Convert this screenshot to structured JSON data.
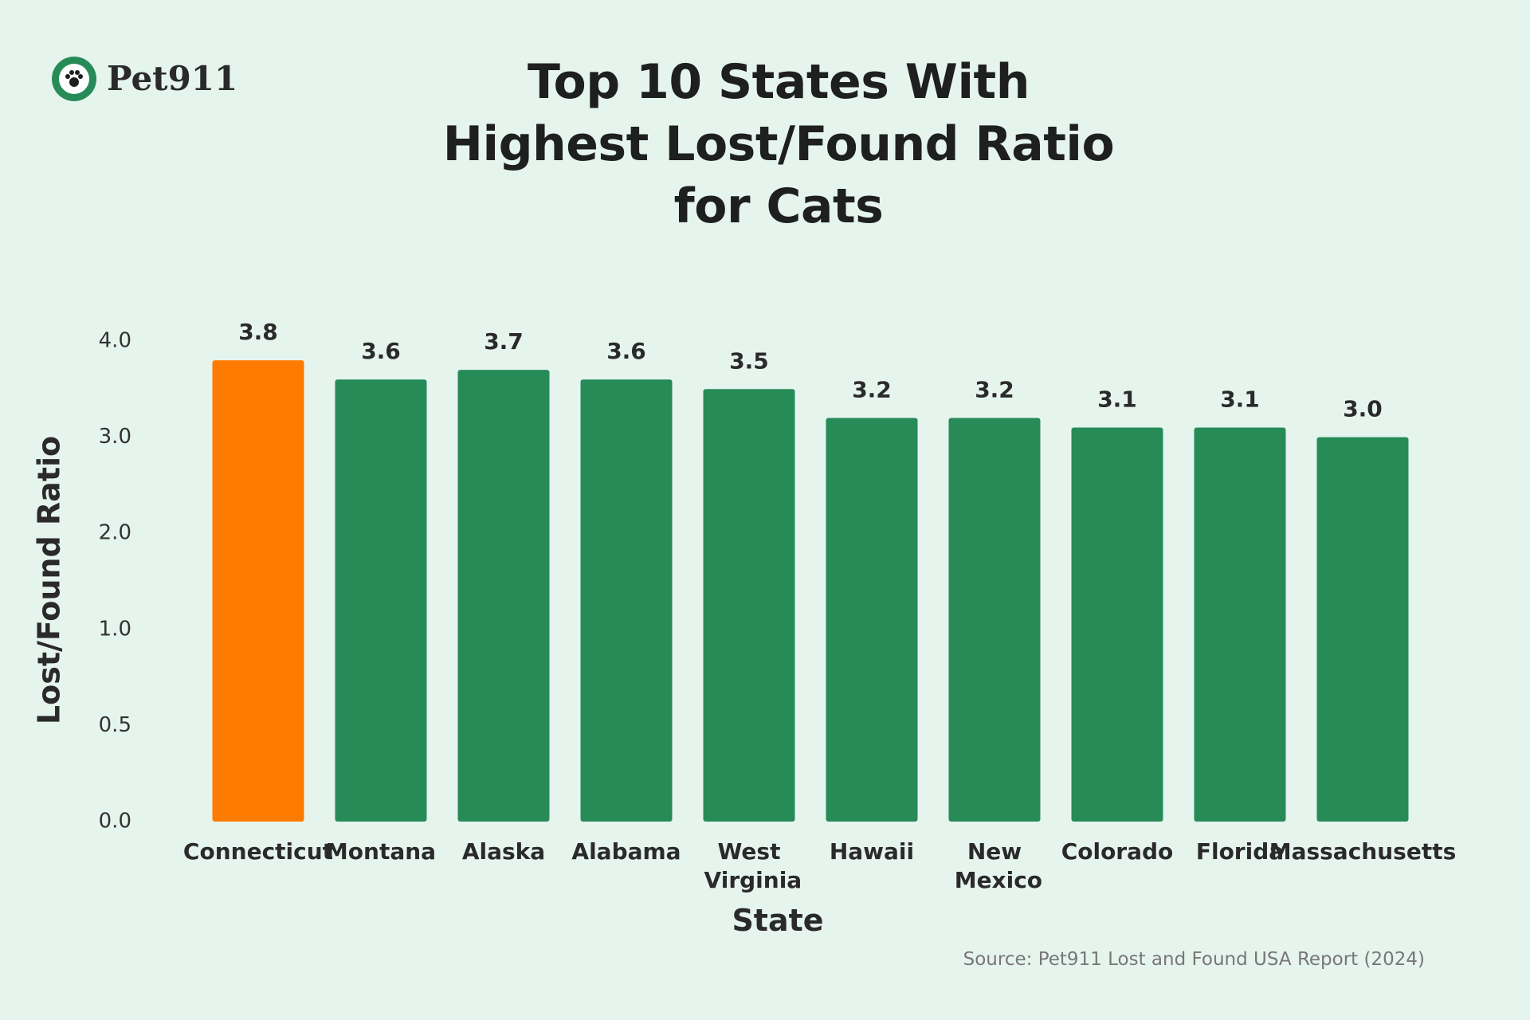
{
  "logo": "Pet911",
  "chart_data": {
    "type": "bar",
    "title": "Top 10 States With Highest Lost/Found Ratio for Cats",
    "x_label": "State",
    "y_label": "Lost/Found Ratio",
    "source": "Source: Pet911 Lost and Found USA Report (2024)",
    "categories": [
      "Connecticut",
      "Montana",
      "Alaska",
      "Alabama",
      "West Virginia",
      "Hawaii",
      "New Mexico",
      "Colorado",
      "Florida",
      "Massachusetts"
    ],
    "values": [
      3.8,
      3.6,
      3.7,
      3.6,
      3.5,
      3.2,
      3.2,
      3.1,
      3.1,
      3.0
    ],
    "value_labels": [
      "3.8",
      "3.6",
      "3.7",
      "3.6",
      "3.5",
      "3.2",
      "3.2",
      "3.1",
      "3.1",
      "3.0"
    ],
    "colors": [
      "#ff7b00",
      "#278b58",
      "#278b58",
      "#278b58",
      "#278b58",
      "#278b58",
      "#278b58",
      "#278b58",
      "#278b58",
      "#278b58"
    ],
    "ylim": [
      0,
      4
    ],
    "yticks": [
      {
        "value": 0,
        "label": "0.0"
      },
      0.5,
      {
        "value": 1,
        "label": "1.0"
      },
      {
        "value": 2,
        "label": "2.0"
      },
      {
        "value": 3,
        "label": "3.0"
      },
      {
        "value": 4,
        "label": "4.0"
      }
    ],
    "grid": false
  }
}
